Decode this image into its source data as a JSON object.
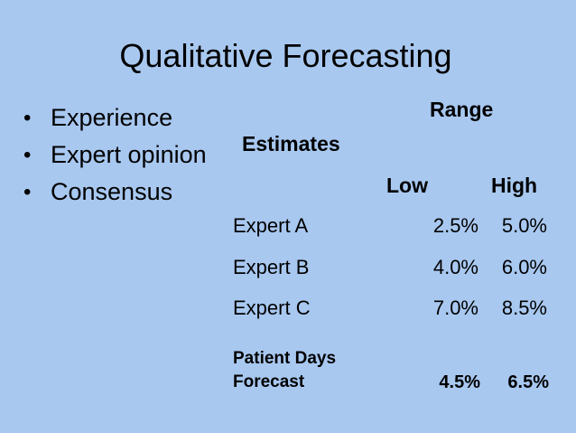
{
  "slide": {
    "title": "Qualitative Forecasting",
    "bullets": [
      "Experience",
      "Expert opinion",
      "Consensus"
    ]
  },
  "table": {
    "range_header": "Range",
    "estimates_header": "Estimates",
    "low_header": "Low",
    "high_header": "High",
    "rows": [
      {
        "name": "Expert  A",
        "low": "2.5%",
        "high": "5.0%"
      },
      {
        "name": "Expert  B",
        "low": "4.0%",
        "high": "6.0%"
      },
      {
        "name": "Expert  C",
        "low": "7.0%",
        "high": "8.5%"
      }
    ],
    "forecast": {
      "label_line1": "Patient Days",
      "label_line2": "Forecast",
      "low": "4.5%",
      "high": "6.5%"
    }
  }
}
